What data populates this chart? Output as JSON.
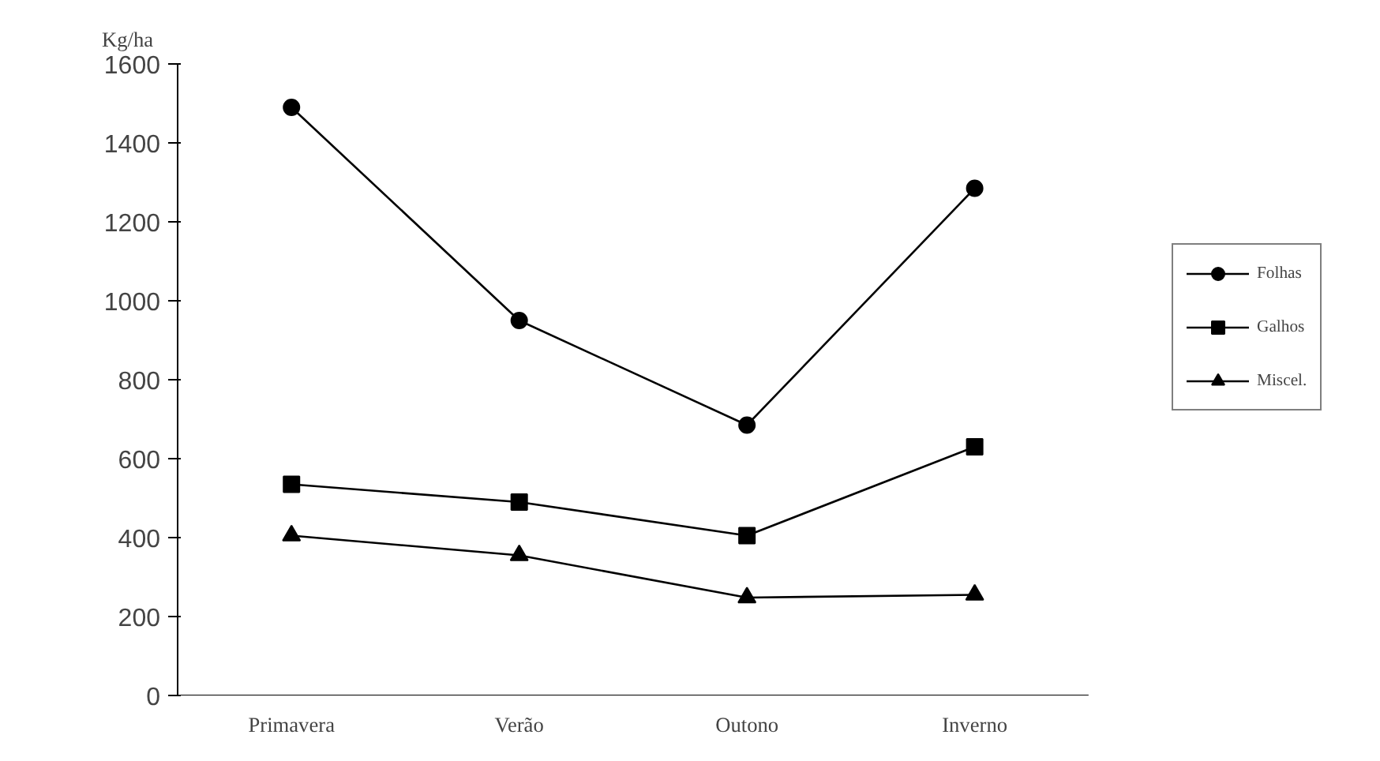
{
  "chart_data": {
    "type": "line",
    "ylabel": "Kg/ha",
    "categories": [
      "Primavera",
      "Verão",
      "Outono",
      "Inverno"
    ],
    "series": [
      {
        "name": "Folhas",
        "color": "#000000",
        "marker": "circle",
        "values": [
          1490,
          950,
          685,
          1285
        ]
      },
      {
        "name": "Galhos",
        "color": "#000000",
        "marker": "square",
        "values": [
          535,
          490,
          405,
          630
        ]
      },
      {
        "name": "Miscel.",
        "color": "#000000",
        "marker": "triangle",
        "values": [
          405,
          355,
          248,
          255
        ]
      }
    ],
    "ylim": [
      0,
      1600
    ],
    "yticks": [
      0,
      200,
      400,
      600,
      800,
      1000,
      1200,
      1400,
      1600
    ],
    "grid": false,
    "legend": "right",
    "line_style": "solid"
  }
}
